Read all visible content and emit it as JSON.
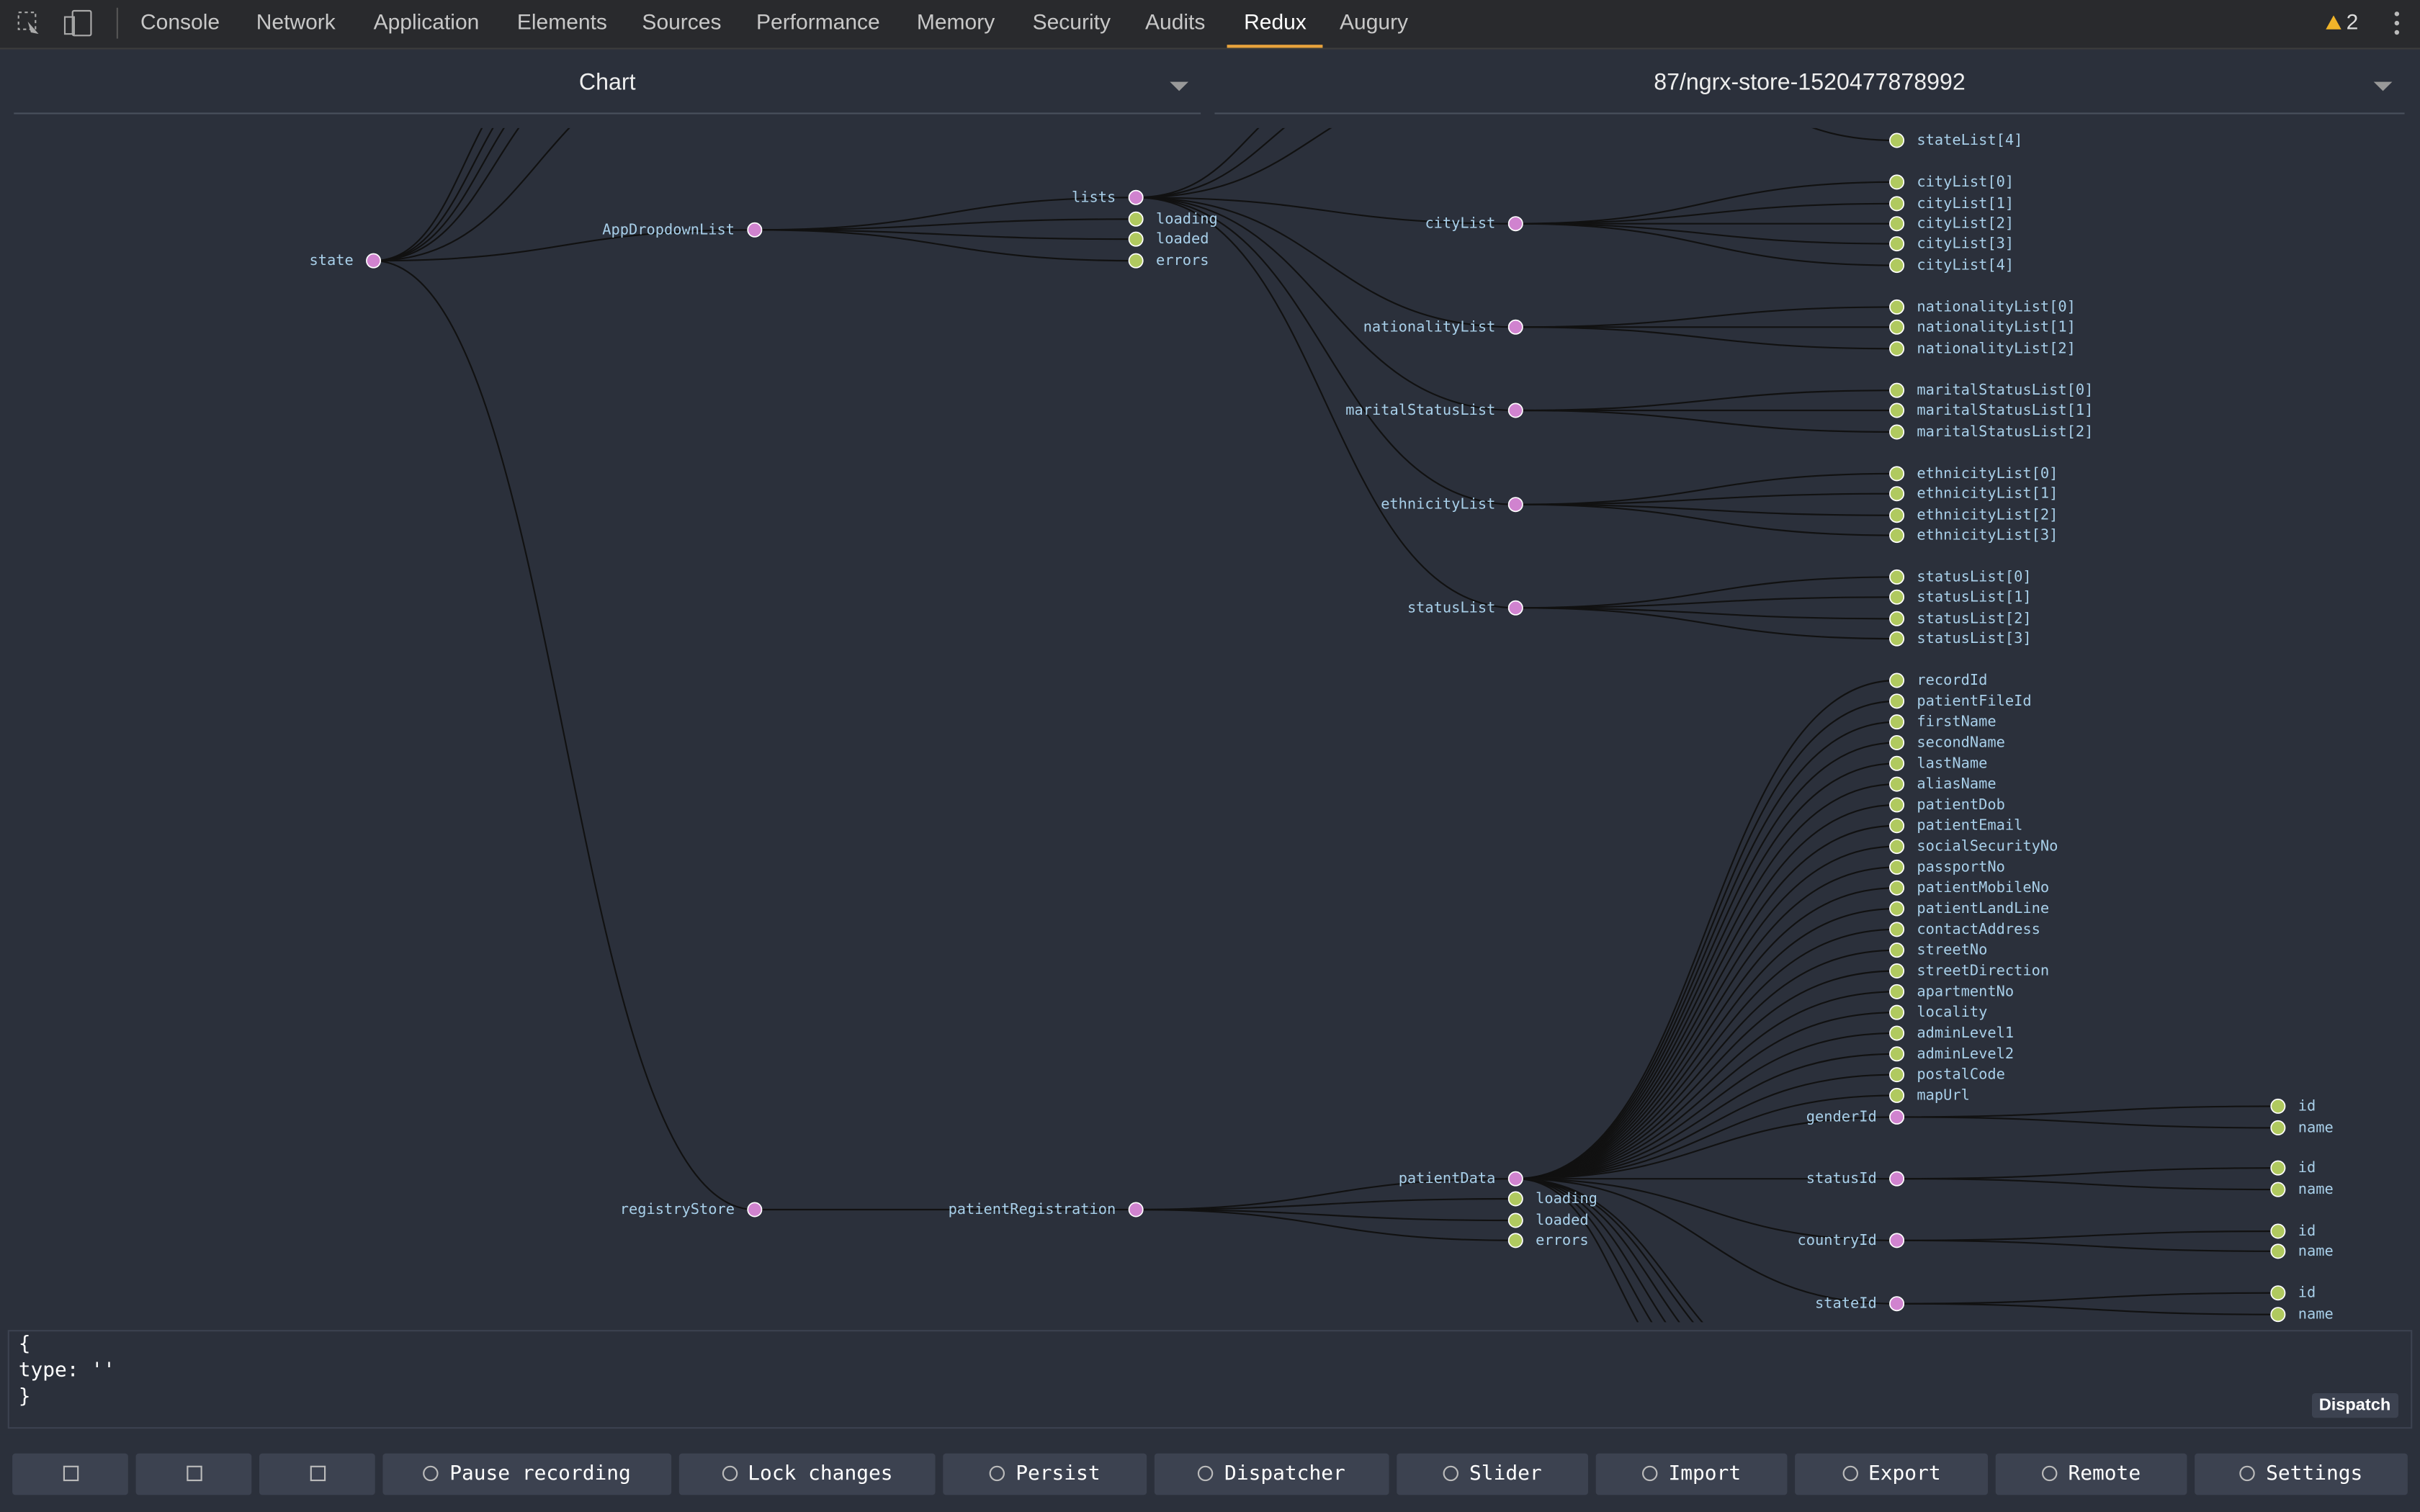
{
  "tabs": [
    "Console",
    "Network",
    "Application",
    "Elements",
    "Sources",
    "Performance",
    "Memory",
    "Security",
    "Audits",
    "Redux",
    "Augury"
  ],
  "active_tab": "Redux",
  "warnings": "2",
  "selectors": {
    "view": "Chart",
    "instance": "87/ngrx-store-1520477878992"
  },
  "fragments": [
    "stateList[4]"
  ],
  "tree": {
    "label": "state",
    "children": [
      {
        "label": "AppDropdownList",
        "children": [
          {
            "label": "lists",
            "children": [
              {
                "label": "cityList",
                "children": [
                  {
                    "label": "cityList[0]"
                  },
                  {
                    "label": "cityList[1]"
                  },
                  {
                    "label": "cityList[2]"
                  },
                  {
                    "label": "cityList[3]"
                  },
                  {
                    "label": "cityList[4]"
                  }
                ]
              },
              {
                "label": "nationalityList",
                "children": [
                  {
                    "label": "nationalityList[0]"
                  },
                  {
                    "label": "nationalityList[1]"
                  },
                  {
                    "label": "nationalityList[2]"
                  }
                ]
              },
              {
                "label": "maritalStatusList",
                "children": [
                  {
                    "label": "maritalStatusList[0]"
                  },
                  {
                    "label": "maritalStatusList[1]"
                  },
                  {
                    "label": "maritalStatusList[2]"
                  }
                ]
              },
              {
                "label": "ethnicityList",
                "children": [
                  {
                    "label": "ethnicityList[0]"
                  },
                  {
                    "label": "ethnicityList[1]"
                  },
                  {
                    "label": "ethnicityList[2]"
                  },
                  {
                    "label": "ethnicityList[3]"
                  }
                ]
              },
              {
                "label": "statusList",
                "children": [
                  {
                    "label": "statusList[0]"
                  },
                  {
                    "label": "statusList[1]"
                  },
                  {
                    "label": "statusList[2]"
                  },
                  {
                    "label": "statusList[3]"
                  }
                ]
              }
            ]
          },
          {
            "label": "loading"
          },
          {
            "label": "loaded"
          },
          {
            "label": "errors"
          }
        ]
      },
      {
        "label": "registryStore",
        "children": [
          {
            "label": "patientRegistration",
            "children": [
              {
                "label": "patientData",
                "children": [
                  {
                    "label": "recordId"
                  },
                  {
                    "label": "patientFileId"
                  },
                  {
                    "label": "firstName"
                  },
                  {
                    "label": "secondName"
                  },
                  {
                    "label": "lastName"
                  },
                  {
                    "label": "aliasName"
                  },
                  {
                    "label": "patientDob"
                  },
                  {
                    "label": "patientEmail"
                  },
                  {
                    "label": "socialSecurityNo"
                  },
                  {
                    "label": "passportNo"
                  },
                  {
                    "label": "patientMobileNo"
                  },
                  {
                    "label": "patientLandLine"
                  },
                  {
                    "label": "contactAddress"
                  },
                  {
                    "label": "streetNo"
                  },
                  {
                    "label": "streetDirection"
                  },
                  {
                    "label": "apartmentNo"
                  },
                  {
                    "label": "locality"
                  },
                  {
                    "label": "adminLevel1"
                  },
                  {
                    "label": "adminLevel2"
                  },
                  {
                    "label": "postalCode"
                  },
                  {
                    "label": "mapUrl"
                  },
                  {
                    "label": "genderId",
                    "children": [
                      {
                        "label": "id"
                      },
                      {
                        "label": "name"
                      }
                    ]
                  },
                  {
                    "label": "statusId",
                    "children": [
                      {
                        "label": "id"
                      },
                      {
                        "label": "name"
                      }
                    ]
                  },
                  {
                    "label": "countryId",
                    "children": [
                      {
                        "label": "id"
                      },
                      {
                        "label": "name"
                      }
                    ]
                  },
                  {
                    "label": "stateId",
                    "children": [
                      {
                        "label": "id"
                      },
                      {
                        "label": "name"
                      }
                    ]
                  }
                ]
              },
              {
                "label": "loading"
              },
              {
                "label": "loaded"
              },
              {
                "label": "errors"
              }
            ]
          }
        ]
      }
    ]
  },
  "editor": [
    "{",
    "type: ''",
    "}"
  ],
  "dispatch": "Dispatch",
  "buttons": [
    "Pause recording",
    "Lock changes",
    "Persist",
    "Dispatcher",
    "Slider",
    "Import",
    "Export",
    "Remote",
    "Settings"
  ]
}
